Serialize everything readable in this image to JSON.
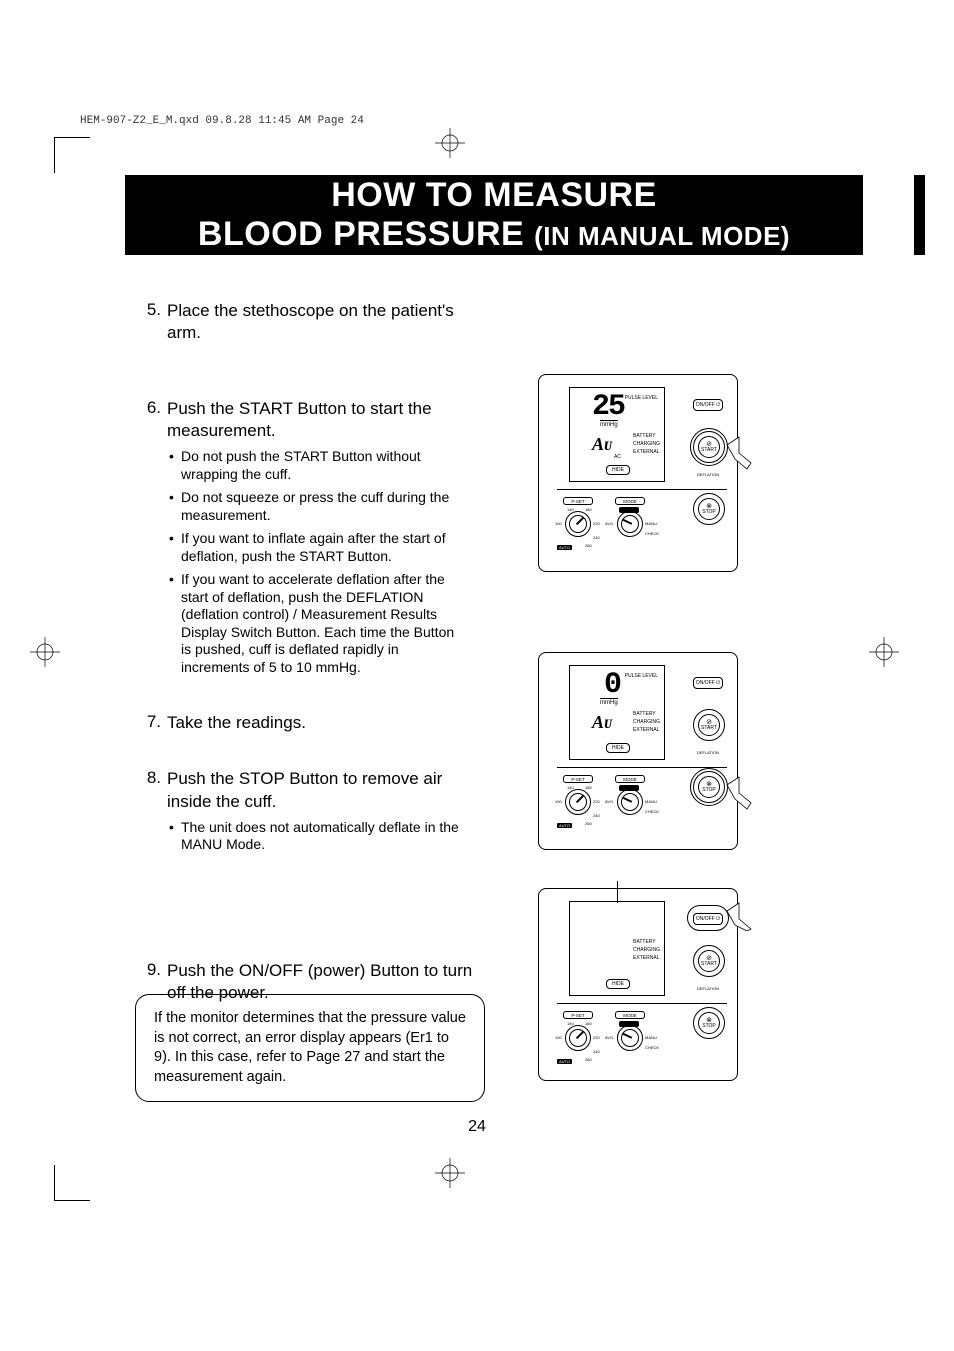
{
  "header": "HEM-907-Z2_E_M.qxd  09.8.28  11:45 AM  Page 24",
  "title": {
    "line1": "HOW TO MEASURE",
    "line2_a": "BLOOD PRESSURE",
    "line2_b": "(IN MANUAL MODE)"
  },
  "steps": [
    {
      "num": "5.",
      "title": "Place the stethoscope on the patient's arm.",
      "bullets": []
    },
    {
      "num": "6.",
      "title": "Push the START Button to start the measurement.",
      "bullets": [
        "Do not push the START Button without wrapping the cuff.",
        "Do not squeeze or press the cuff during the measurement.",
        "If you want to inflate again after the start of deflation, push the START Button.",
        "If you want to accelerate deflation after the start of deflation, push the DEFLATION (deflation control) / Measurement Results Display Switch Button. Each time the Button is pushed, cuff is deflated rapidly in increments of 5 to 10 mmHg."
      ]
    },
    {
      "num": "7.",
      "title": "Take the readings.",
      "bullets": []
    },
    {
      "num": "8.",
      "title": "Push the STOP Button to remove air inside the cuff.",
      "bullets": [
        "The unit does not automatically deflate in the MANU Mode."
      ]
    },
    {
      "num": "9.",
      "title": "Push the ON/OFF (power) Button to turn off the power.",
      "bullets": []
    }
  ],
  "note": "If the monitor determines that the pressure value is not correct, an error display appears (Er1 to 9). In this case, refer to Page 27 and start the measurement again.",
  "page_num": "24",
  "device": {
    "fig1_value": "25",
    "fig2_value": "0",
    "mmhg": "mmHg",
    "pulse": "PULSE\nLEVEL",
    "au": "Aᴜ",
    "batt": "BATTERY",
    "chrg": "CHARGING",
    "ext": "EXTERNAL",
    "ac": "AC",
    "hide": "HIDE",
    "onoff": "ON/OFF ⏻",
    "start": "START",
    "start_sym": "⊘",
    "stop": "STOP",
    "stop_sym": "⊗",
    "pset": "P-SET",
    "mode": "MODE",
    "auto_lbl": "AUTO",
    "defl": "DEFLATION",
    "dial_nums": {
      "n140": "140",
      "n180": "180",
      "n100": "100",
      "n220": "220",
      "n240": "240",
      "n260": "260",
      "auto": "AUTO"
    },
    "mode_opts": {
      "single": "SINGLE",
      "avg": "AVG.",
      "manu": "MANU.",
      "check": "CHECK"
    }
  },
  "colors": {
    "bg": "#ffffff",
    "fg": "#000000"
  }
}
